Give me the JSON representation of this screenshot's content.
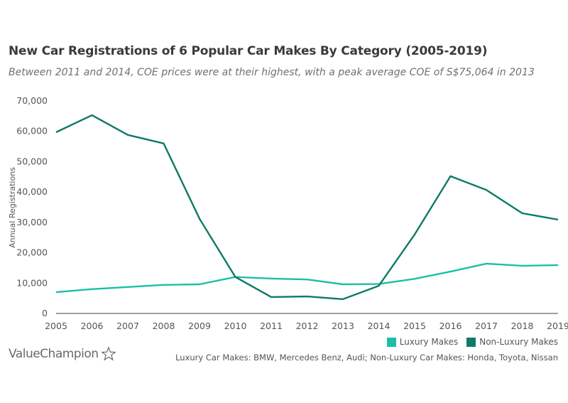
{
  "header": {
    "title": "New Car Registrations of 6 Popular Car Makes By Category (2005-2019)",
    "subtitle": "Between 2011 and 2014, COE prices were at their highest, with a peak average COE of S$75,064 in 2013"
  },
  "footer": {
    "brand": "ValueChampion",
    "brand_icon": "star-outline-icon",
    "note": "Luxury Car Makes: BMW, Mercedes Benz, Audi; Non-Luxury Car Makes: Honda, Toyota, Nissan"
  },
  "legend": [
    {
      "label": "Luxury Makes",
      "color": "#1abfa8"
    },
    {
      "label": "Non-Luxury Makes",
      "color": "#0e7a66"
    }
  ],
  "chart_data": {
    "type": "line",
    "title": "New Car Registrations of 6 Popular Car Makes By Category (2005-2019)",
    "subtitle": "Between 2011 and 2014, COE prices were at their highest, with a peak average COE of S$75,064 in 2013",
    "xlabel": "",
    "ylabel": "Annual Registrations",
    "x": [
      "2005",
      "2006",
      "2007",
      "2008",
      "2009",
      "2010",
      "2011",
      "2012",
      "2013",
      "2014",
      "2015",
      "2016",
      "2017",
      "2018",
      "2019"
    ],
    "yticks": [
      "0",
      "10,000",
      "20,000",
      "30,000",
      "40,000",
      "50,000",
      "60,000",
      "70,000"
    ],
    "ylim": [
      0,
      70000
    ],
    "grid": false,
    "legend_position": "bottom-right",
    "series": [
      {
        "name": "Luxury Makes",
        "color": "#1abfa8",
        "values": [
          7000,
          8000,
          8700,
          9400,
          9600,
          12000,
          11500,
          11200,
          9600,
          9700,
          11400,
          13800,
          16400,
          15700,
          15900
        ]
      },
      {
        "name": "Non-Luxury Makes",
        "color": "#0e7a66",
        "values": [
          59700,
          65300,
          58800,
          56000,
          31200,
          12000,
          5400,
          5600,
          4700,
          9100,
          26000,
          45200,
          40700,
          33000,
          30900
        ]
      }
    ]
  }
}
